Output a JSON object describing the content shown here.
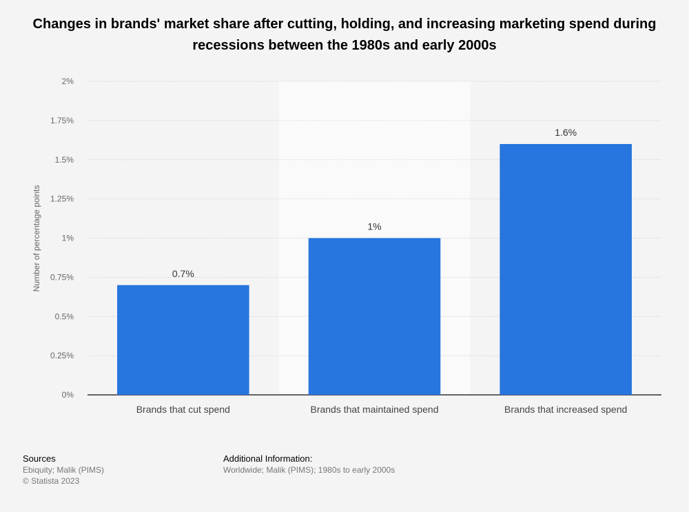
{
  "chart_data": {
    "type": "bar",
    "title": "Changes in brands' market share after cutting, holding, and increasing marketing spend during recessions between the 1980s and early 2000s",
    "ylabel": "Number of percentage points",
    "xlabel": "",
    "categories": [
      "Brands that cut spend",
      "Brands that maintained spend",
      "Brands that increased spend"
    ],
    "values": [
      0.7,
      1.0,
      1.6
    ],
    "value_labels": [
      "0.7%",
      "1%",
      "1.6%"
    ],
    "ylim": [
      0,
      2
    ],
    "yticks": [
      0,
      0.25,
      0.5,
      0.75,
      1,
      1.25,
      1.5,
      1.75,
      2
    ],
    "ytick_labels": [
      "0%",
      "0.25%",
      "0.5%",
      "0.75%",
      "1%",
      "1.25%",
      "1.5%",
      "1.75%",
      "2%"
    ],
    "grid": true,
    "highlighted_category": 1,
    "bar_color": "#2775de"
  },
  "footer": {
    "sources_heading": "Sources",
    "sources_line1": "Ebiquity; Malik (PIMS)",
    "sources_line2": "© Statista 2023",
    "additional_heading": "Additional Information:",
    "additional_text": "Worldwide; Malik (PIMS); 1980s to early 2000s"
  }
}
